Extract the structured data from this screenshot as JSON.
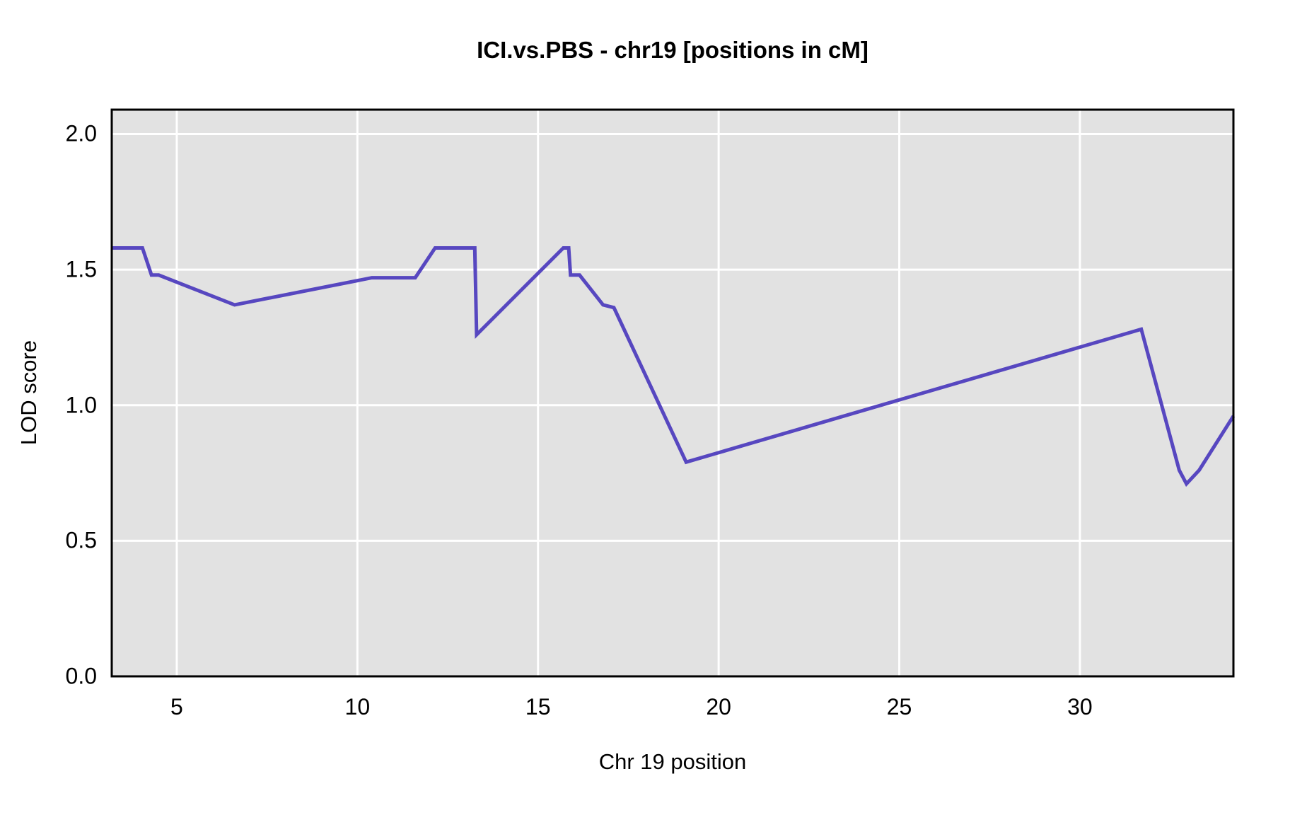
{
  "title": "ICI.vs.PBS - chr19 [positions in cM]",
  "colors": {
    "line": "#5747C0",
    "panel_background": "#e2e2e2",
    "gridline": "#ffffff",
    "panel_border": "#000000",
    "text": "#000000",
    "page_background": "#ffffff"
  },
  "chart_data": {
    "type": "line",
    "title": "ICI.vs.PBS - chr19 [positions in cM]",
    "xlabel": "Chr 19 position",
    "ylabel": "LOD score",
    "xlim": [
      3.2,
      34.25
    ],
    "ylim": [
      0,
      2.09
    ],
    "xticks": [
      5,
      10,
      15,
      20,
      25,
      30
    ],
    "xtick_labels": [
      "5",
      "10",
      "15",
      "20",
      "25",
      "30"
    ],
    "yticks": [
      0.0,
      0.5,
      1.0,
      1.5,
      2.0
    ],
    "ytick_labels": [
      "0.0",
      "0.5",
      "1.0",
      "1.5",
      "2.0"
    ],
    "grid": true,
    "legend": "none",
    "series": [
      {
        "name": "LOD score",
        "color": "#5747C0",
        "x": [
          3.2,
          4.05,
          4.3,
          4.5,
          6.6,
          10.4,
          11.6,
          12.15,
          13.25,
          13.3,
          15.7,
          15.85,
          15.9,
          16.15,
          16.8,
          17.1,
          19.1,
          31.7,
          32.75,
          32.95,
          33.3,
          34.25
        ],
        "y": [
          1.58,
          1.58,
          1.48,
          1.48,
          1.37,
          1.47,
          1.47,
          1.58,
          1.58,
          1.26,
          1.58,
          1.58,
          1.48,
          1.48,
          1.37,
          1.36,
          0.79,
          1.28,
          0.76,
          0.71,
          0.76,
          0.96
        ]
      }
    ]
  },
  "layout_note": ""
}
